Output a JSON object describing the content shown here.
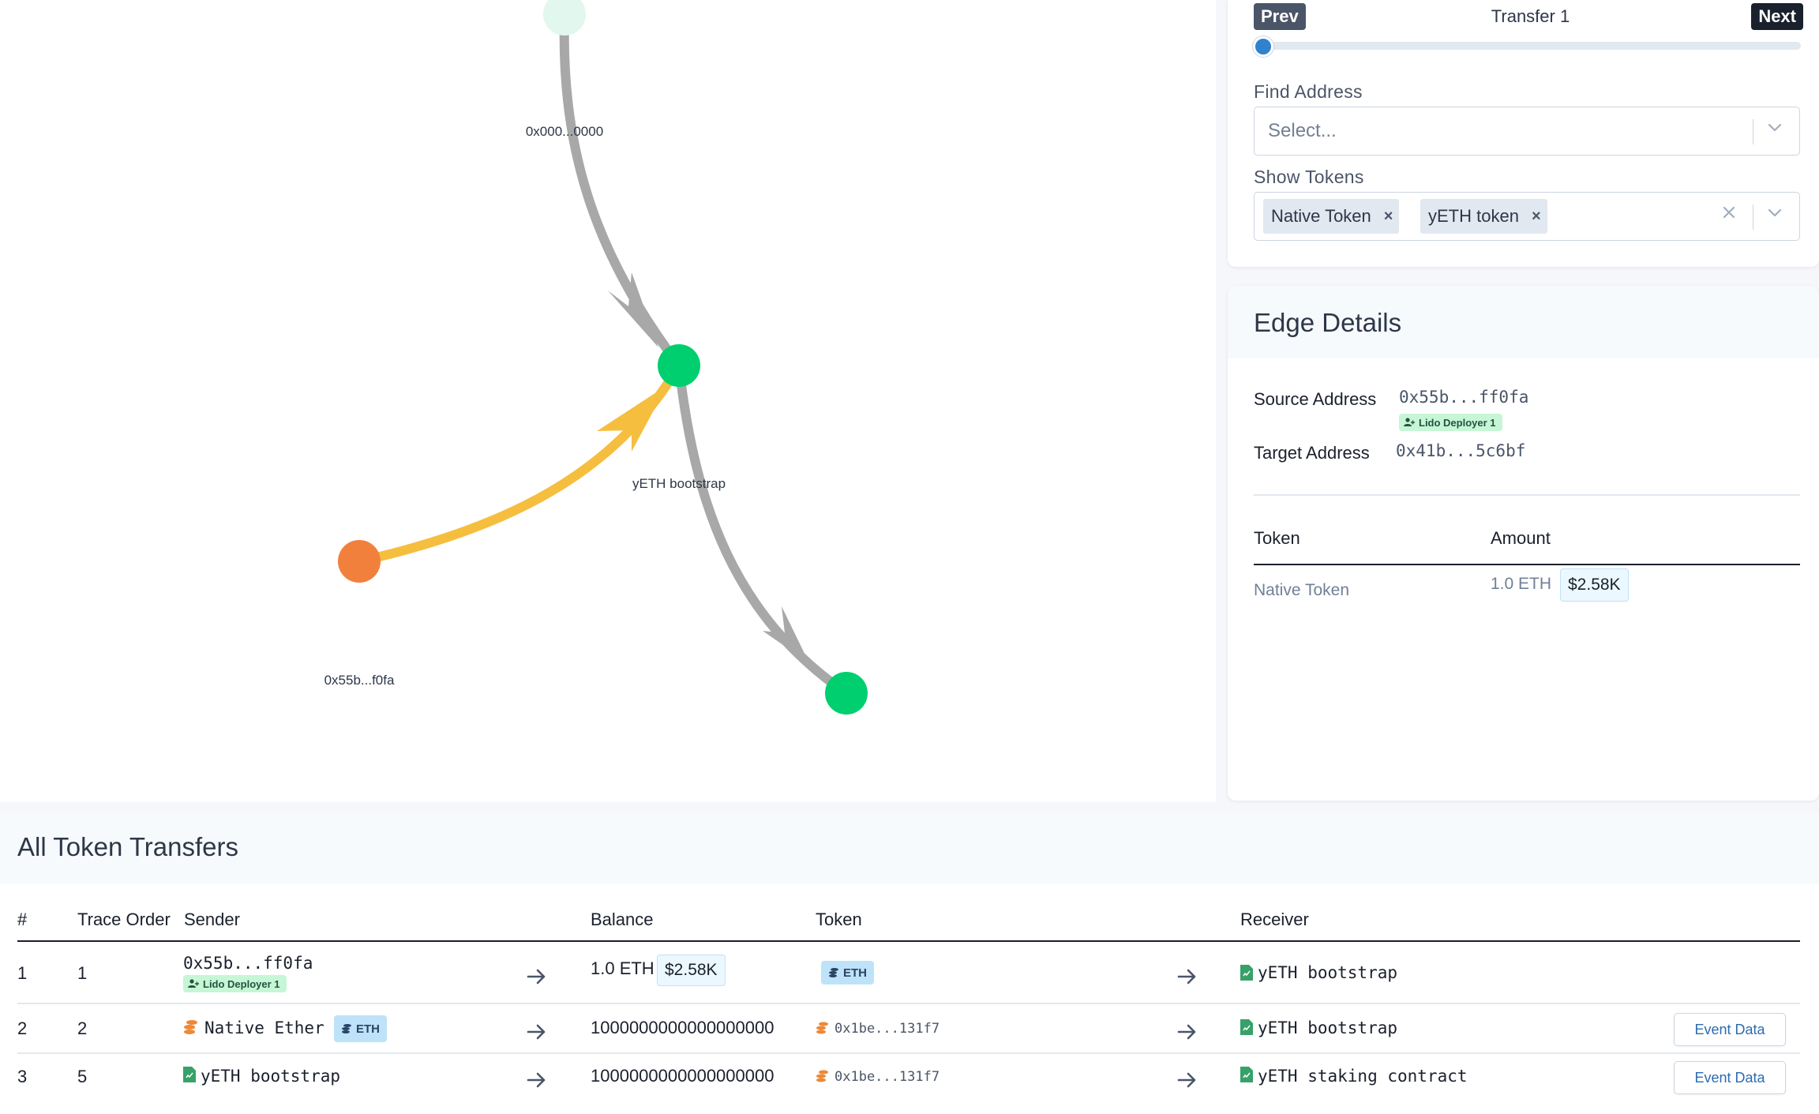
{
  "graph": {
    "node_labels": {
      "top": "0x000...0000",
      "middle": "yETH bootstrap",
      "left": "0x55b...f0fa"
    },
    "colors": {
      "grey_edge": "#a8a8a8",
      "yellow_edge": "#f6be3e",
      "green_node": "#00cf6f",
      "orange_node": "#f2803d",
      "faded_node": "#e2f7ee"
    }
  },
  "controls": {
    "prev_label": "Prev",
    "next_label": "Next",
    "transfer_label": "Transfer 1",
    "slider_position": 0,
    "find_address": {
      "label": "Find Address",
      "placeholder": "Select..."
    },
    "show_tokens": {
      "label": "Show Tokens",
      "tags": [
        "Native Token",
        "yETH token"
      ]
    }
  },
  "edge_details": {
    "title": "Edge Details",
    "source_label": "Source Address",
    "source_value": "0x55b...ff0fa",
    "source_badge": "Lido Deployer 1",
    "target_label": "Target Address",
    "target_value": "0x41b...5c6bf",
    "table": {
      "headers": {
        "token": "Token",
        "amount": "Amount"
      },
      "rows": [
        {
          "token": "Native Token",
          "amount": "1.0 ETH",
          "usd": "$2.58K"
        }
      ]
    }
  },
  "transfers": {
    "title": "All Token Transfers",
    "headers": {
      "num": "#",
      "trace": "Trace Order",
      "sender": "Sender",
      "balance": "Balance",
      "token": "Token",
      "receiver": "Receiver"
    },
    "rows": [
      {
        "num": "1",
        "trace": "1",
        "sender": "0x55b...ff0fa",
        "sender_badge": "Lido Deployer 1",
        "balance": "1.0 ETH",
        "usd": "$2.58K",
        "token_badge": "ETH",
        "receiver": "yETH bootstrap"
      },
      {
        "num": "2",
        "trace": "2",
        "sender": "Native Ether",
        "sender_badge": "ETH",
        "balance": "1000000000000000000",
        "token": "0x1be...131f7",
        "receiver": "yETH bootstrap",
        "action": "Event Data"
      },
      {
        "num": "3",
        "trace": "5",
        "sender": "yETH bootstrap",
        "balance": "1000000000000000000",
        "token": "0x1be...131f7",
        "receiver": "yETH staking contract",
        "action": "Event Data"
      }
    ]
  }
}
